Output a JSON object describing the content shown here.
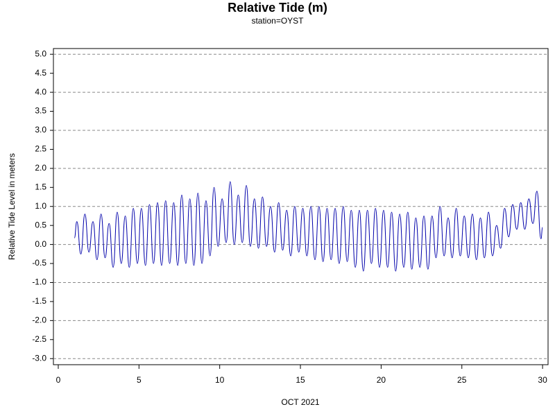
{
  "chart_data": {
    "type": "line",
    "title": "Relative Tide (m)",
    "subtitle": "station=OYST",
    "x_label": "OCT 2021",
    "y_label": "Relative Tide Level in meters",
    "xlim": [
      -0.3,
      30.34
    ],
    "ylim": [
      -3.16,
      5.15
    ],
    "xticks": [
      0,
      5,
      10,
      15,
      20,
      25,
      30
    ],
    "yticks": [
      {
        "value": 5,
        "label": "5.0"
      },
      4.5,
      {
        "value": 4,
        "label": "4.0"
      },
      3.5,
      {
        "value": 3,
        "label": "3.0"
      },
      2.5,
      {
        "value": 2,
        "label": "2.0"
      },
      1.5,
      {
        "value": 1,
        "label": "1.0"
      },
      0.5,
      {
        "value": 0,
        "label": "0.0"
      },
      -0.5,
      {
        "value": -1,
        "label": "-1.0"
      },
      -1.5,
      {
        "value": -2,
        "label": "-2.0"
      },
      -2.5,
      {
        "value": -3,
        "label": "-3.0"
      }
    ],
    "grid_ticks": [
      5,
      4,
      3,
      2,
      1,
      0,
      -1,
      -2,
      -3
    ],
    "x": [
      1.0,
      1.15,
      1.4,
      1.65,
      1.9,
      2.15,
      2.4,
      2.65,
      2.9,
      3.15,
      3.4,
      3.65,
      3.9,
      4.15,
      4.4,
      4.65,
      4.9,
      5.15,
      5.4,
      5.65,
      5.9,
      6.15,
      6.4,
      6.65,
      6.9,
      7.15,
      7.4,
      7.65,
      7.9,
      8.15,
      8.4,
      8.65,
      8.9,
      9.15,
      9.4,
      9.65,
      9.9,
      10.15,
      10.4,
      10.65,
      10.9,
      11.15,
      11.4,
      11.65,
      11.9,
      12.15,
      12.4,
      12.65,
      12.9,
      13.15,
      13.4,
      13.65,
      13.9,
      14.15,
      14.4,
      14.65,
      14.9,
      15.15,
      15.4,
      15.65,
      15.9,
      16.15,
      16.4,
      16.65,
      16.9,
      17.15,
      17.4,
      17.65,
      17.9,
      18.15,
      18.4,
      18.65,
      18.9,
      19.15,
      19.4,
      19.65,
      19.9,
      20.15,
      20.4,
      20.65,
      20.9,
      21.15,
      21.4,
      21.65,
      21.9,
      22.15,
      22.4,
      22.65,
      22.9,
      23.15,
      23.4,
      23.65,
      23.9,
      24.15,
      24.4,
      24.65,
      24.9,
      25.15,
      25.4,
      25.65,
      25.9,
      26.15,
      26.4,
      26.65,
      26.9,
      27.15,
      27.4,
      27.65,
      27.9,
      28.15,
      28.4,
      28.65,
      28.9,
      29.15,
      29.4,
      29.65,
      29.9,
      30.0
    ],
    "series": [
      {
        "color": "#0000aa",
        "values": [
          0.17,
          0.6,
          -0.25,
          0.8,
          -0.2,
          0.6,
          -0.4,
          0.8,
          -0.35,
          0.55,
          -0.6,
          0.85,
          -0.5,
          0.75,
          -0.6,
          0.95,
          -0.5,
          0.95,
          -0.55,
          1.05,
          -0.5,
          1.1,
          -0.55,
          1.15,
          -0.5,
          1.1,
          -0.55,
          1.3,
          -0.5,
          1.2,
          -0.55,
          1.35,
          -0.5,
          1.15,
          -0.3,
          1.5,
          -0.05,
          1.2,
          0.05,
          1.65,
          0.0,
          1.3,
          0.05,
          1.55,
          -0.05,
          1.2,
          -0.1,
          1.25,
          -0.05,
          1.0,
          -0.2,
          1.1,
          -0.15,
          0.9,
          -0.3,
          1.0,
          -0.2,
          0.95,
          -0.3,
          1.0,
          -0.4,
          1.0,
          -0.45,
          0.95,
          -0.4,
          0.95,
          -0.5,
          1.0,
          -0.45,
          0.9,
          -0.6,
          0.9,
          -0.7,
          0.9,
          -0.5,
          0.95,
          -0.6,
          0.9,
          -0.6,
          0.85,
          -0.7,
          0.8,
          -0.6,
          0.85,
          -0.65,
          0.7,
          -0.6,
          0.75,
          -0.65,
          0.75,
          -0.35,
          1.0,
          -0.3,
          0.7,
          -0.35,
          0.95,
          -0.3,
          0.75,
          -0.35,
          0.8,
          -0.4,
          0.7,
          -0.35,
          0.85,
          -0.3,
          0.5,
          -0.1,
          0.95,
          0.2,
          1.05,
          0.4,
          1.1,
          0.4,
          1.2,
          0.55,
          1.4,
          0.15,
          0.45
        ]
      }
    ]
  }
}
